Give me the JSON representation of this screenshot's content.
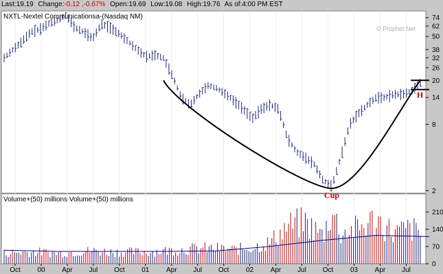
{
  "quote": {
    "last_label": "Last:",
    "last_value": "19.19",
    "change_label": "Change:",
    "change_value": "-0.12 ,-0.67%",
    "open_label": "Open:",
    "open_value": "19.69",
    "low_label": "Low:",
    "low_value": "19.08",
    "high_label": "High:",
    "high_value": "19.76",
    "asof_label": "As of:",
    "asof_value": "4:00 PM EST"
  },
  "watermark": "© Prophet.Net",
  "colors": {
    "background": "#c8c8c8",
    "plot_bg": "#ffffff",
    "price_bars": "#1a237e",
    "volume_up": "#1a237e",
    "volume_down": "#d40000",
    "volume_average": "#000080",
    "annotation_line": "#000000",
    "annotation_text": "#c00000"
  },
  "chart_data": [
    {
      "type": "line",
      "title": "NXTL-Nextel Communicationsa-(Nasdaq NM)",
      "xlabel": "",
      "ylabel": "",
      "scale": "log",
      "ylim": [
        1.9,
        85
      ],
      "yticks": [
        2,
        8,
        14,
        20,
        26,
        32,
        38,
        50,
        62,
        74
      ],
      "xtick_labels": [
        "Oct",
        "00",
        "Apr",
        "Jul",
        "Oct",
        "01",
        "Apr",
        "Jul",
        "Oct",
        "02",
        "Apr",
        "Jul",
        "Oct",
        "03",
        "Apr",
        "Jul"
      ],
      "series": [
        {
          "style": "hlc-bars",
          "x": [
            0,
            1,
            2,
            3,
            4,
            5,
            6,
            7,
            8,
            9,
            10,
            11,
            12,
            13,
            14,
            15,
            16,
            17,
            18,
            19,
            20,
            21,
            22,
            23,
            24,
            25,
            26,
            27,
            28,
            29,
            30,
            31,
            32,
            33,
            34,
            35,
            36,
            37,
            38,
            39,
            40,
            41,
            42,
            43,
            44,
            45,
            46,
            47
          ],
          "y": [
            32,
            38,
            45,
            55,
            58,
            65,
            70,
            78,
            60,
            55,
            48,
            65,
            60,
            53,
            45,
            38,
            33,
            34,
            32,
            22,
            14,
            12,
            15,
            18,
            17,
            15,
            13,
            11,
            9,
            11,
            12,
            11,
            6,
            4.5,
            4,
            3.5,
            2.5,
            2.2,
            4,
            8,
            10,
            12,
            14,
            14,
            15,
            15,
            16,
            19
          ]
        }
      ],
      "annotations": [
        {
          "label": "Cup",
          "kind": "curve",
          "points": [
            [
              18,
              20
            ],
            [
              37,
              2.1
            ],
            [
              47,
              20
            ]
          ]
        },
        {
          "label": "H",
          "kind": "handle",
          "range": [
            45,
            48
          ],
          "upper": 20,
          "lower": 16.5
        }
      ]
    },
    {
      "type": "bar",
      "title": "Volume+(50) millions     Volume+(50) millions",
      "xlabel": "",
      "ylabel": "",
      "ylim": [
        0,
        250
      ],
      "yticks": [
        0,
        70,
        140,
        210
      ],
      "series": [
        {
          "style": "volume-bars",
          "x": [
            0,
            2,
            4,
            6,
            8,
            10,
            12,
            14,
            16,
            18,
            20,
            22,
            24,
            26,
            28,
            30,
            32,
            34,
            36,
            37,
            38,
            40,
            42,
            44,
            46,
            48
          ],
          "values": [
            45,
            50,
            50,
            45,
            50,
            55,
            50,
            50,
            50,
            55,
            60,
            65,
            65,
            60,
            70,
            90,
            160,
            175,
            120,
            230,
            130,
            150,
            190,
            130,
            150,
            100
          ]
        },
        {
          "style": "moving-average",
          "x": [
            0,
            6,
            12,
            18,
            24,
            30,
            36,
            42,
            48
          ],
          "values": [
            55,
            50,
            50,
            50,
            52,
            70,
            95,
            115,
            110
          ]
        }
      ]
    }
  ]
}
